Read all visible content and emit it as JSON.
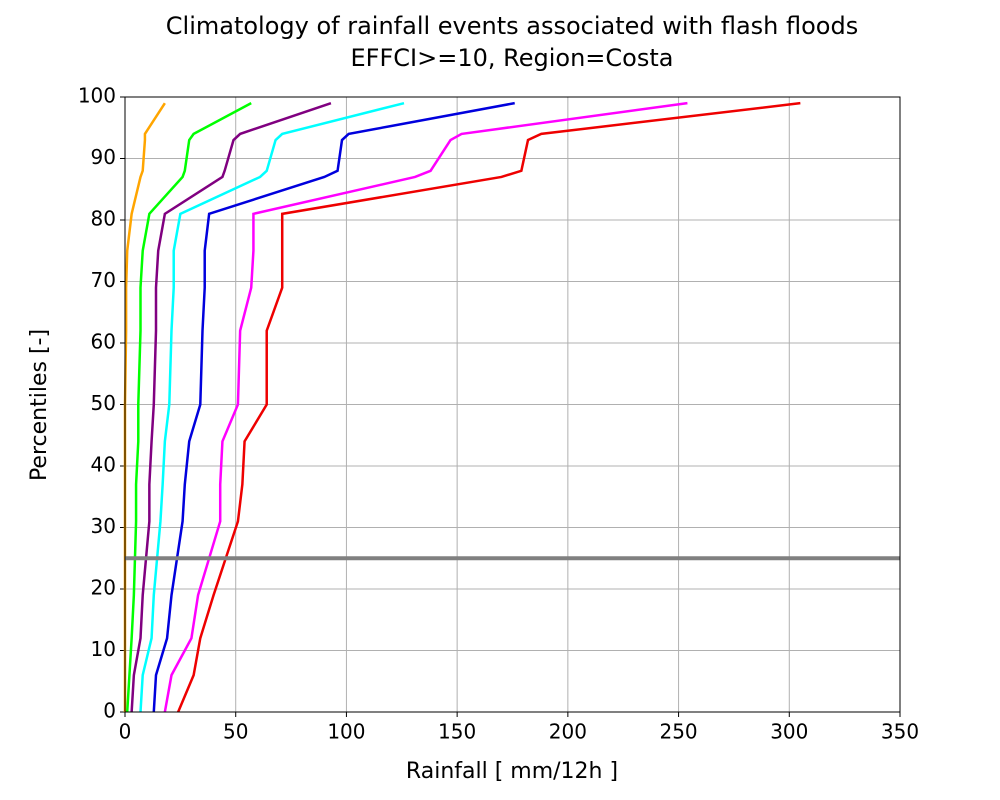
{
  "chart_data": {
    "type": "line",
    "title": [
      "Climatology of rainfall events associated with flash floods",
      "EFFCI>=10, Region=Costa"
    ],
    "x_label": "Rainfall [ mm/12h ]",
    "y_label": "Percentiles [-]",
    "xlim": [
      0,
      350
    ],
    "ylim": [
      0,
      100
    ],
    "xticks": [
      0,
      50,
      100,
      150,
      200,
      250,
      300,
      350
    ],
    "yticks": [
      0,
      10,
      20,
      30,
      40,
      50,
      60,
      70,
      80,
      90,
      100
    ],
    "grid": true,
    "hline": {
      "value": 25,
      "color": "#808080"
    },
    "y": [
      0,
      6,
      12,
      19,
      31,
      37,
      44,
      50,
      62,
      69,
      75,
      81,
      87,
      88,
      93,
      94,
      99
    ],
    "series": [
      {
        "color": "#ffa500",
        "x": [
          0,
          0,
          0,
          0,
          0,
          0,
          0,
          0,
          0.5,
          0.5,
          1,
          3,
          7,
          8,
          9,
          9,
          18
        ]
      },
      {
        "color": "#00ff00",
        "x": [
          1,
          2,
          3,
          4,
          5,
          5,
          6,
          6,
          7,
          7,
          8,
          11,
          26,
          27,
          29,
          31,
          57
        ]
      },
      {
        "color": "#800080",
        "x": [
          3,
          4,
          7,
          8,
          11,
          11,
          12,
          13,
          14,
          14,
          15,
          18,
          44,
          45,
          49,
          52,
          93
        ]
      },
      {
        "color": "#00ffff",
        "x": [
          7,
          8,
          12,
          13,
          16,
          17,
          18,
          20,
          21,
          22,
          22,
          25,
          61,
          64,
          68,
          71,
          126
        ]
      },
      {
        "color": "#0000dd",
        "x": [
          13,
          14,
          19,
          21,
          26,
          27,
          29,
          34,
          35,
          36,
          36,
          38,
          90,
          96,
          98,
          101,
          176
        ]
      },
      {
        "color": "#ff00ff",
        "x": [
          18,
          21,
          30,
          33,
          43,
          43,
          44,
          51,
          52,
          57,
          58,
          58,
          131,
          138,
          147,
          152,
          254
        ]
      },
      {
        "color": "#ee0000",
        "x": [
          24,
          31,
          34,
          40,
          51,
          53,
          54,
          64,
          64,
          71,
          71,
          71,
          170,
          179,
          182,
          188,
          305
        ]
      }
    ]
  }
}
